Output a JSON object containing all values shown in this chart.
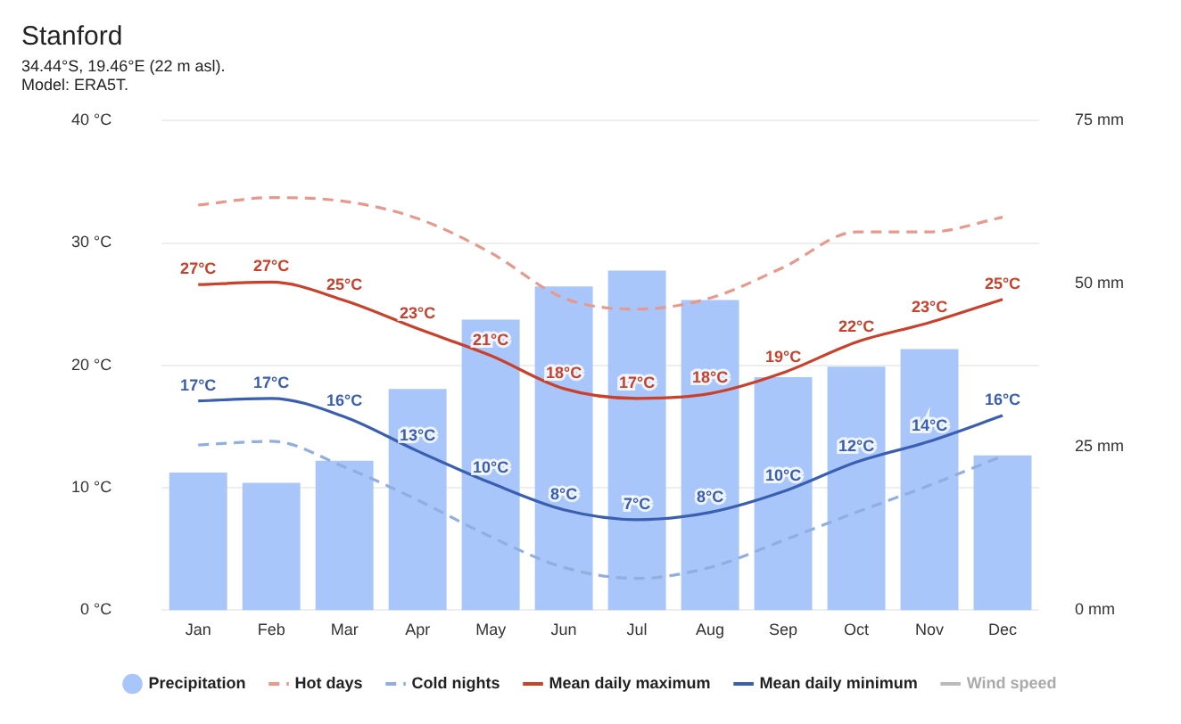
{
  "chart_data": {
    "type": "bar",
    "title": "Stanford",
    "subtitle": "34.44°S, 19.46°E (22 m asl).\nModel: ERA5T.",
    "categories": [
      "Jan",
      "Feb",
      "Mar",
      "Apr",
      "May",
      "Jun",
      "Jul",
      "Aug",
      "Sep",
      "Oct",
      "Nov",
      "Dec"
    ],
    "series": [
      {
        "name": "Precipitation",
        "axis": "y2",
        "color": "#a8c6fa",
        "values": [
          21.1,
          19.5,
          22.9,
          33.9,
          44.5,
          49.6,
          52,
          47.5,
          35.7,
          37.3,
          40,
          23.7
        ]
      },
      {
        "name": "Hot days",
        "type": "line",
        "line_style": "dashed",
        "color": "#e8998d",
        "values": [
          33.1,
          33.7,
          33.4,
          32,
          29.2,
          25.5,
          24.6,
          25.5,
          28,
          30.9,
          30.9,
          32.1
        ]
      },
      {
        "name": "Cold nights",
        "type": "line",
        "line_style": "dashed",
        "color": "#91aee0",
        "values": [
          13.5,
          13.8,
          11.7,
          9,
          6,
          3.5,
          2.6,
          3.5,
          5.7,
          8,
          10.2,
          12.6
        ]
      },
      {
        "name": "Mean daily maximum",
        "type": "line",
        "line_style": "solid",
        "color": "#c9412b",
        "values": [
          26.6,
          26.8,
          25.3,
          23,
          20.8,
          18.1,
          17.3,
          17.7,
          19.4,
          21.9,
          23.5,
          25.4
        ],
        "value_labels": [
          "27°C",
          "27°C",
          "25°C",
          "23°C",
          "21°C",
          "18°C",
          "17°C",
          "18°C",
          "19°C",
          "22°C",
          "23°C",
          "25°C"
        ]
      },
      {
        "name": "Mean daily minimum",
        "type": "line",
        "line_style": "solid",
        "color": "#3a5fb0",
        "values": [
          17.1,
          17.3,
          15.8,
          13,
          10.4,
          8.2,
          7.4,
          8,
          9.7,
          12.1,
          13.8,
          15.9
        ],
        "value_labels": [
          "17°C",
          "17°C",
          "16°C",
          "13°C",
          "10°C",
          "8°C",
          "7°C",
          "8°C",
          "10°C",
          "12°C",
          "14°C",
          "16°C"
        ]
      },
      {
        "name": "Wind speed",
        "type": "line",
        "line_style": "solid",
        "color": "#bbbbbb",
        "values": [
          null,
          null,
          null,
          null,
          null,
          null,
          null,
          null,
          null,
          null,
          null,
          null
        ]
      }
    ],
    "ylim": [
      0,
      40
    ],
    "yticks": [
      {
        "value": 0,
        "label": "0 °C"
      },
      {
        "value": 10,
        "label": "10 °C"
      },
      {
        "value": 20,
        "label": "20 °C"
      },
      {
        "value": 30,
        "label": "30 °C"
      },
      {
        "value": 40,
        "label": "40 °C"
      }
    ],
    "y2lim": [
      0,
      75
    ],
    "y2ticks": [
      {
        "value": 0,
        "label": "0 mm"
      },
      {
        "value": 25,
        "label": "25 mm"
      },
      {
        "value": 50,
        "label": "50 mm"
      },
      {
        "value": 75,
        "label": "75 mm"
      }
    ],
    "grid": "y",
    "legend": "bottom",
    "marker": "none"
  }
}
